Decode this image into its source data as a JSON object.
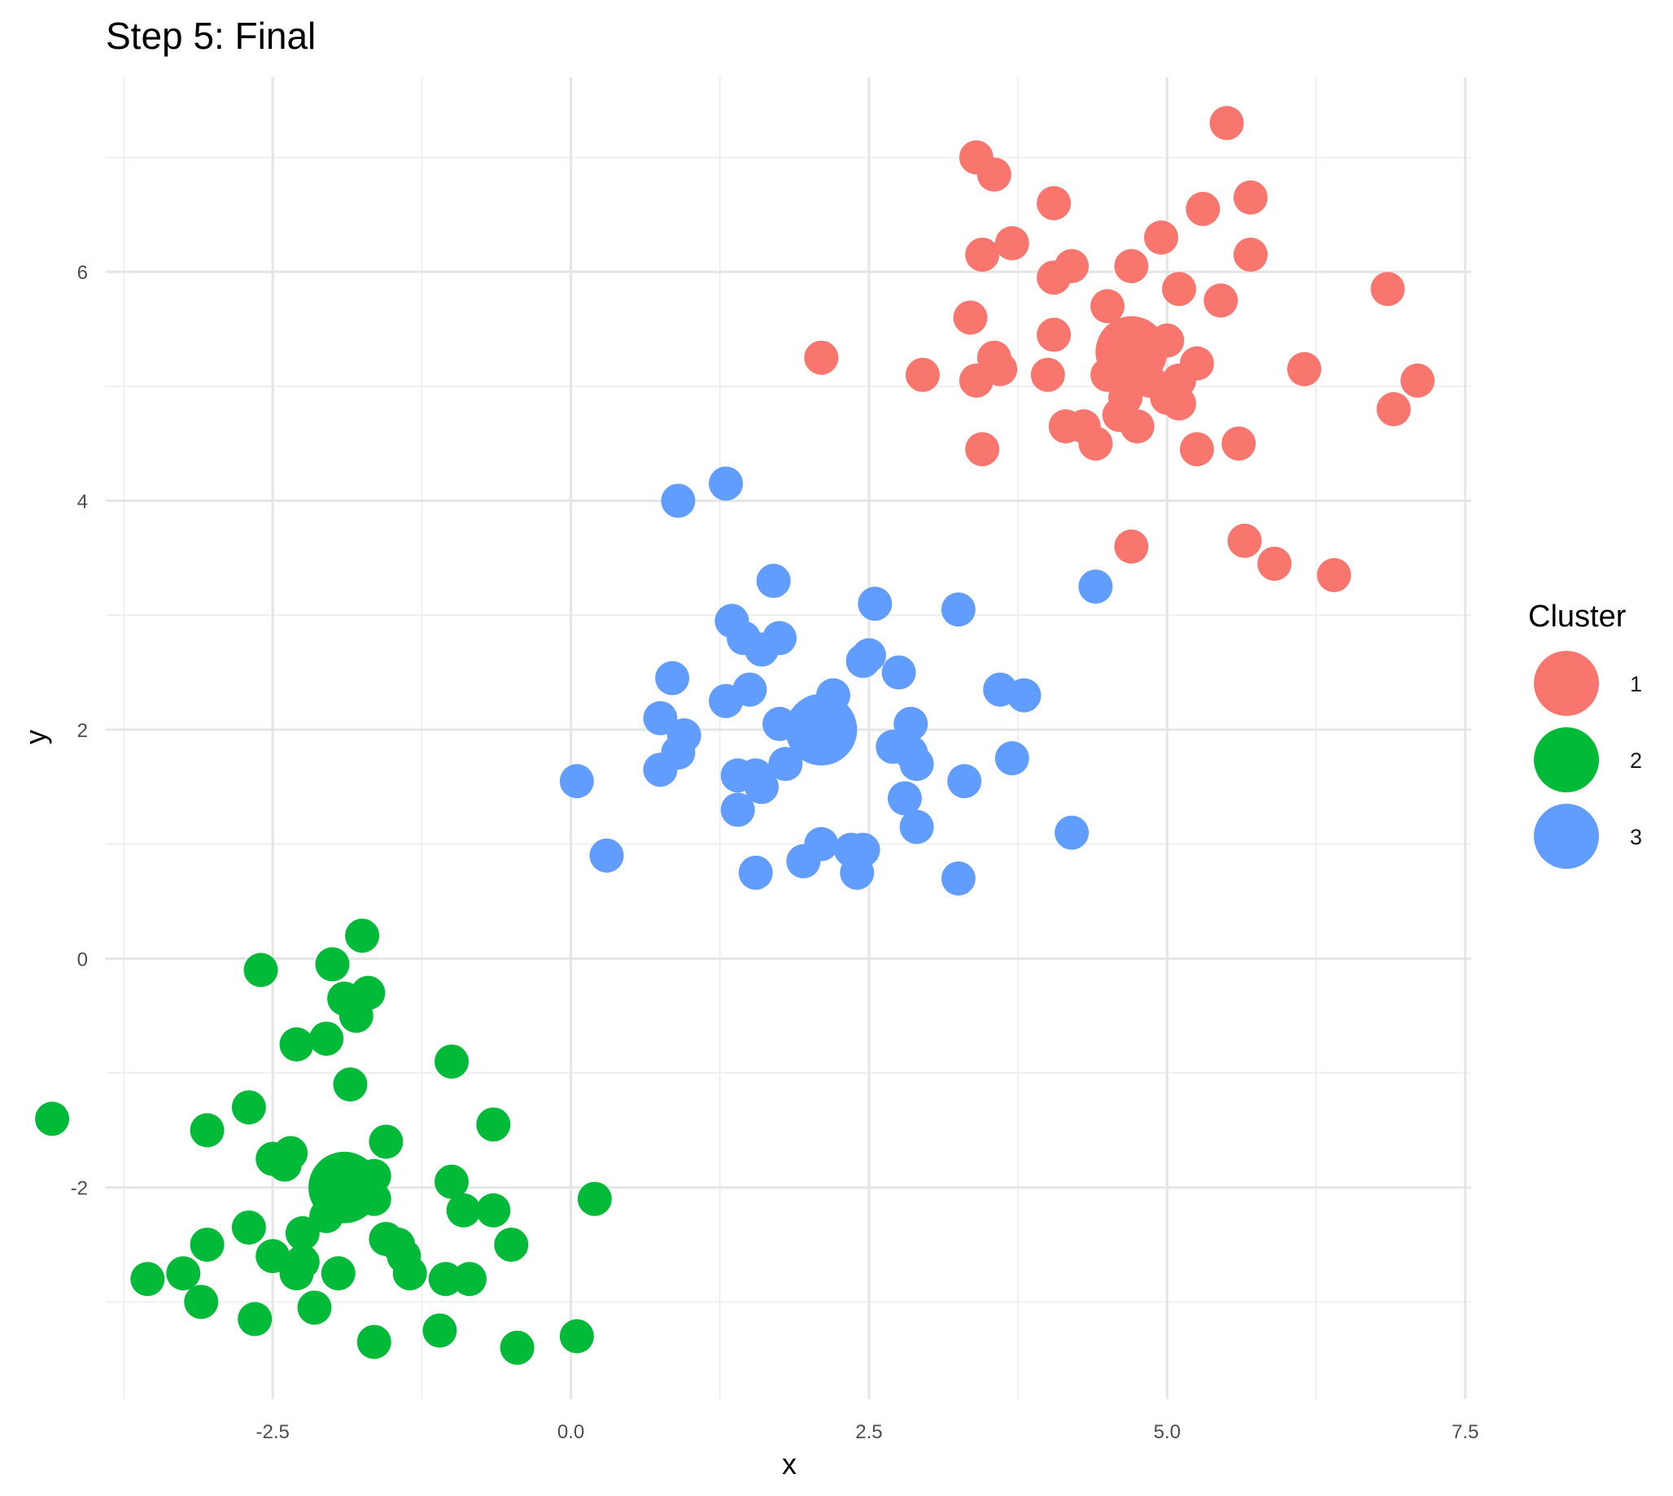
{
  "chart_data": {
    "type": "scatter",
    "title": "Step 5: Final",
    "xlabel": "x",
    "ylabel": "y",
    "xlim": [
      -3.9,
      7.55
    ],
    "ylim": [
      -3.85,
      7.7
    ],
    "x_ticks": [
      -2.5,
      0.0,
      2.5,
      5.0,
      7.5
    ],
    "x_tick_labels": [
      "-2.5",
      "0.0",
      "2.5",
      "5.0",
      "7.5"
    ],
    "y_ticks": [
      -2,
      0,
      2,
      4,
      6
    ],
    "y_tick_labels": [
      "-2",
      "0",
      "2",
      "4",
      "6"
    ],
    "grid": true,
    "legend": {
      "title": "Cluster",
      "position": "right",
      "entries": [
        {
          "label": "1",
          "color": "#F8766D"
        },
        {
          "label": "2",
          "color": "#00BA38"
        },
        {
          "label": "3",
          "color": "#619CFF"
        }
      ]
    },
    "series": [
      {
        "name": "1",
        "color": "#F8766D",
        "centroid": [
          4.7,
          5.3
        ],
        "points": [
          [
            5.5,
            7.3
          ],
          [
            3.4,
            7.0
          ],
          [
            3.55,
            6.85
          ],
          [
            4.05,
            6.6
          ],
          [
            5.3,
            6.55
          ],
          [
            5.7,
            6.65
          ],
          [
            3.7,
            6.25
          ],
          [
            3.45,
            6.15
          ],
          [
            4.95,
            6.3
          ],
          [
            5.7,
            6.15
          ],
          [
            4.2,
            6.05
          ],
          [
            4.7,
            6.05
          ],
          [
            4.05,
            5.95
          ],
          [
            5.1,
            5.85
          ],
          [
            6.85,
            5.85
          ],
          [
            5.45,
            5.75
          ],
          [
            3.35,
            5.6
          ],
          [
            4.5,
            5.7
          ],
          [
            4.05,
            5.45
          ],
          [
            5.0,
            5.4
          ],
          [
            2.1,
            5.25
          ],
          [
            3.55,
            5.25
          ],
          [
            3.6,
            5.15
          ],
          [
            2.95,
            5.1
          ],
          [
            3.4,
            5.05
          ],
          [
            4.0,
            5.1
          ],
          [
            4.5,
            5.1
          ],
          [
            5.25,
            5.2
          ],
          [
            5.1,
            5.05
          ],
          [
            6.15,
            5.15
          ],
          [
            7.1,
            5.05
          ],
          [
            4.65,
            4.9
          ],
          [
            5.0,
            4.9
          ],
          [
            5.1,
            4.85
          ],
          [
            6.9,
            4.8
          ],
          [
            4.6,
            4.75
          ],
          [
            4.15,
            4.65
          ],
          [
            4.3,
            4.65
          ],
          [
            4.75,
            4.65
          ],
          [
            4.4,
            4.5
          ],
          [
            3.45,
            4.45
          ],
          [
            5.25,
            4.45
          ],
          [
            5.6,
            4.5
          ],
          [
            4.7,
            3.6
          ],
          [
            5.65,
            3.65
          ],
          [
            5.9,
            3.45
          ],
          [
            6.4,
            3.35
          ],
          [
            4.85,
            5.05
          ]
        ]
      },
      {
        "name": "2",
        "color": "#00BA38",
        "centroid": [
          -1.9,
          -2.0
        ],
        "points": [
          [
            -1.75,
            0.2
          ],
          [
            -2.6,
            -0.1
          ],
          [
            -2.0,
            -0.05
          ],
          [
            -1.9,
            -0.35
          ],
          [
            -1.7,
            -0.3
          ],
          [
            -1.8,
            -0.5
          ],
          [
            -2.3,
            -0.75
          ],
          [
            -2.05,
            -0.7
          ],
          [
            -1.0,
            -0.9
          ],
          [
            -1.85,
            -1.1
          ],
          [
            -4.35,
            -1.4
          ],
          [
            -2.7,
            -1.3
          ],
          [
            -3.05,
            -1.5
          ],
          [
            -0.65,
            -1.45
          ],
          [
            -1.55,
            -1.6
          ],
          [
            -2.5,
            -1.75
          ],
          [
            -2.35,
            -1.7
          ],
          [
            -2.4,
            -1.8
          ],
          [
            -1.65,
            -1.9
          ],
          [
            -1.0,
            -1.95
          ],
          [
            0.2,
            -2.1
          ],
          [
            -1.65,
            -2.1
          ],
          [
            -0.9,
            -2.2
          ],
          [
            -0.65,
            -2.2
          ],
          [
            -2.05,
            -2.25
          ],
          [
            -2.7,
            -2.35
          ],
          [
            -2.25,
            -2.4
          ],
          [
            -1.55,
            -2.45
          ],
          [
            -1.45,
            -2.5
          ],
          [
            -0.5,
            -2.5
          ],
          [
            -3.05,
            -2.5
          ],
          [
            -2.5,
            -2.6
          ],
          [
            -2.25,
            -2.65
          ],
          [
            -1.4,
            -2.6
          ],
          [
            -3.25,
            -2.75
          ],
          [
            -3.55,
            -2.8
          ],
          [
            -2.3,
            -2.75
          ],
          [
            -1.95,
            -2.75
          ],
          [
            -1.35,
            -2.75
          ],
          [
            -1.05,
            -2.8
          ],
          [
            -0.85,
            -2.8
          ],
          [
            -3.1,
            -3.0
          ],
          [
            -2.15,
            -3.05
          ],
          [
            -2.65,
            -3.15
          ],
          [
            -1.1,
            -3.25
          ],
          [
            -1.65,
            -3.35
          ],
          [
            0.05,
            -3.3
          ],
          [
            -0.45,
            -3.4
          ]
        ]
      },
      {
        "name": "3",
        "color": "#619CFF",
        "centroid": [
          2.1,
          2.0
        ],
        "points": [
          [
            1.3,
            4.15
          ],
          [
            0.9,
            4.0
          ],
          [
            4.4,
            3.25
          ],
          [
            1.7,
            3.3
          ],
          [
            2.55,
            3.1
          ],
          [
            3.25,
            3.05
          ],
          [
            1.35,
            2.95
          ],
          [
            1.45,
            2.8
          ],
          [
            1.75,
            2.8
          ],
          [
            1.6,
            2.7
          ],
          [
            2.5,
            2.65
          ],
          [
            2.45,
            2.6
          ],
          [
            2.75,
            2.5
          ],
          [
            0.85,
            2.45
          ],
          [
            1.5,
            2.35
          ],
          [
            3.6,
            2.35
          ],
          [
            3.8,
            2.3
          ],
          [
            2.2,
            2.3
          ],
          [
            1.3,
            2.25
          ],
          [
            0.75,
            2.1
          ],
          [
            1.75,
            2.05
          ],
          [
            2.0,
            2.05
          ],
          [
            2.85,
            2.05
          ],
          [
            0.95,
            1.95
          ],
          [
            2.7,
            1.85
          ],
          [
            0.9,
            1.8
          ],
          [
            2.85,
            1.8
          ],
          [
            2.9,
            1.7
          ],
          [
            3.7,
            1.75
          ],
          [
            1.8,
            1.7
          ],
          [
            0.75,
            1.65
          ],
          [
            1.4,
            1.6
          ],
          [
            1.55,
            1.6
          ],
          [
            1.6,
            1.5
          ],
          [
            3.3,
            1.55
          ],
          [
            0.05,
            1.55
          ],
          [
            2.8,
            1.4
          ],
          [
            1.4,
            1.3
          ],
          [
            2.9,
            1.15
          ],
          [
            4.2,
            1.1
          ],
          [
            2.1,
            1.0
          ],
          [
            2.35,
            0.95
          ],
          [
            2.45,
            0.95
          ],
          [
            0.3,
            0.9
          ],
          [
            1.95,
            0.85
          ],
          [
            1.55,
            0.75
          ],
          [
            2.4,
            0.75
          ],
          [
            3.25,
            0.7
          ]
        ]
      }
    ]
  }
}
